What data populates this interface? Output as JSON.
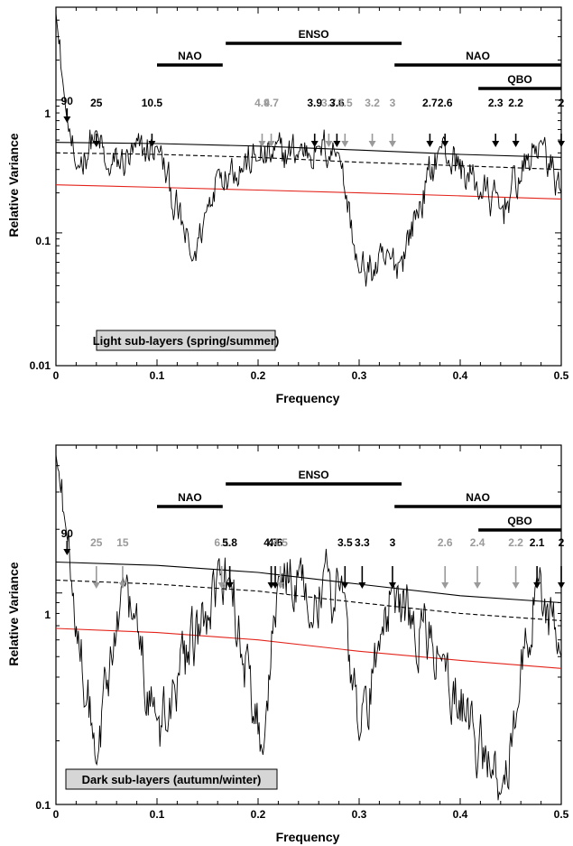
{
  "colors": {
    "black": "#000000",
    "gray": "#9a9a9a",
    "red": "#e3241b",
    "box_fill": "#d6d6d6"
  },
  "panels": [
    {
      "ylabel": "Relative Variance",
      "xlabel": "Frequency",
      "xticks": [
        "0",
        "0.1",
        "0.2",
        "0.3",
        "0.4",
        "0.5"
      ],
      "yticks": [
        "0.01",
        "0.1",
        "1"
      ],
      "caption": "Light sub-layers (spring/summer)",
      "bands": [
        {
          "label": "NAO",
          "x": [
            0.1,
            0.165
          ]
        },
        {
          "label": "ENSO",
          "x": [
            0.168,
            0.342
          ]
        },
        {
          "label": "NAO",
          "x": [
            0.335,
            0.5
          ]
        },
        {
          "label": "QBO",
          "x": [
            0.418,
            0.5
          ]
        }
      ],
      "peaks": [
        {
          "label": "90",
          "f": 0.011,
          "color": "black"
        },
        {
          "label": "25",
          "f": 0.04,
          "color": "black"
        },
        {
          "label": "10.5",
          "f": 0.095,
          "color": "black"
        },
        {
          "label": "4.9",
          "f": 0.204,
          "color": "gray"
        },
        {
          "label": "4.7",
          "f": 0.213,
          "color": "gray"
        },
        {
          "label": "3.9",
          "f": 0.256,
          "color": "black"
        },
        {
          "label": "3.7",
          "f": 0.27,
          "color": "gray"
        },
        {
          "label": "3.6",
          "f": 0.278,
          "color": "black"
        },
        {
          "label": "3.5",
          "f": 0.286,
          "color": "gray"
        },
        {
          "label": "3.2",
          "f": 0.313,
          "color": "gray"
        },
        {
          "label": "3",
          "f": 0.333,
          "color": "gray"
        },
        {
          "label": "2.7",
          "f": 0.37,
          "color": "black"
        },
        {
          "label": "2.6",
          "f": 0.385,
          "color": "black"
        },
        {
          "label": "2.3",
          "f": 0.435,
          "color": "black"
        },
        {
          "label": "2.2",
          "f": 0.455,
          "color": "black"
        },
        {
          "label": "2",
          "f": 0.5,
          "color": "black"
        }
      ]
    },
    {
      "ylabel": "Relative Variance",
      "xlabel": "Frequency",
      "xticks": [
        "0",
        "0.1",
        "0.2",
        "0.3",
        "0.4",
        "0.5"
      ],
      "yticks": [
        "0.1",
        "1"
      ],
      "caption": "Dark sub-layers (autumn/winter)",
      "bands": [
        {
          "label": "NAO",
          "x": [
            0.1,
            0.165
          ]
        },
        {
          "label": "ENSO",
          "x": [
            0.168,
            0.342
          ]
        },
        {
          "label": "NAO",
          "x": [
            0.335,
            0.5
          ]
        },
        {
          "label": "QBO",
          "x": [
            0.418,
            0.5
          ]
        }
      ],
      "peaks": [
        {
          "label": "90",
          "f": 0.011,
          "color": "black"
        },
        {
          "label": "25",
          "f": 0.04,
          "color": "gray"
        },
        {
          "label": "15",
          "f": 0.066,
          "color": "gray"
        },
        {
          "label": "6.1",
          "f": 0.164,
          "color": "gray"
        },
        {
          "label": "5.8",
          "f": 0.172,
          "color": "black"
        },
        {
          "label": "4.7",
          "f": 0.213,
          "color": "black"
        },
        {
          "label": "4.6",
          "f": 0.217,
          "color": "black"
        },
        {
          "label": "4.5",
          "f": 0.222,
          "color": "gray"
        },
        {
          "label": "3.5",
          "f": 0.286,
          "color": "black"
        },
        {
          "label": "3.3",
          "f": 0.303,
          "color": "black"
        },
        {
          "label": "3",
          "f": 0.333,
          "color": "black"
        },
        {
          "label": "2.6",
          "f": 0.385,
          "color": "gray"
        },
        {
          "label": "2.4",
          "f": 0.417,
          "color": "gray"
        },
        {
          "label": "2.2",
          "f": 0.455,
          "color": "gray"
        },
        {
          "label": "2.1",
          "f": 0.476,
          "color": "black"
        },
        {
          "label": "2",
          "f": 0.5,
          "color": "black"
        }
      ]
    }
  ],
  "chart_data": [
    {
      "type": "line",
      "title": "",
      "xlabel": "Frequency",
      "ylabel": "Relative Variance",
      "xlim": [
        0,
        0.5
      ],
      "ylim": [
        0.01,
        5
      ],
      "yscale": "log",
      "grid": false,
      "series": [
        {
          "name": "",
          "style": "black noisy spectrum",
          "x": [
            0,
            0.01,
            0.02,
            0.04,
            0.05,
            0.1,
            0.135,
            0.16,
            0.2,
            0.26,
            0.28,
            0.3,
            0.34,
            0.38,
            0.44,
            0.48,
            0.5
          ],
          "y": [
            4.5,
            0.8,
            0.3,
            0.6,
            0.3,
            0.45,
            0.06,
            0.3,
            0.35,
            0.45,
            0.4,
            0.05,
            0.06,
            0.45,
            0.15,
            0.5,
            0.2
          ]
        },
        {
          "name": "",
          "style": "solid black smooth",
          "x": [
            0,
            0.1,
            0.2,
            0.3,
            0.4,
            0.5
          ],
          "y": [
            0.48,
            0.47,
            0.45,
            0.42,
            0.39,
            0.37
          ]
        },
        {
          "name": "",
          "style": "dashed black smooth",
          "x": [
            0,
            0.1,
            0.2,
            0.3,
            0.4,
            0.5
          ],
          "y": [
            0.4,
            0.39,
            0.37,
            0.34,
            0.32,
            0.3
          ]
        },
        {
          "name": "",
          "style": "red smooth",
          "x": [
            0,
            0.1,
            0.2,
            0.3,
            0.4,
            0.5
          ],
          "y": [
            0.23,
            0.22,
            0.21,
            0.2,
            0.19,
            0.18
          ]
        }
      ]
    },
    {
      "type": "line",
      "title": "",
      "xlabel": "Frequency",
      "ylabel": "Relative Variance",
      "xlim": [
        0,
        0.5
      ],
      "ylim": [
        0.1,
        5
      ],
      "yscale": "log",
      "grid": false,
      "series": [
        {
          "name": "",
          "style": "black noisy spectrum",
          "x": [
            0,
            0.01,
            0.04,
            0.066,
            0.1,
            0.172,
            0.205,
            0.22,
            0.286,
            0.3,
            0.333,
            0.38,
            0.44,
            0.476,
            0.5
          ],
          "y": [
            4.5,
            2.0,
            0.15,
            1.2,
            0.25,
            1.2,
            0.17,
            1.2,
            1.0,
            0.2,
            1.1,
            0.5,
            0.11,
            1.2,
            0.5
          ]
        },
        {
          "name": "",
          "style": "solid black smooth",
          "x": [
            0,
            0.1,
            0.2,
            0.3,
            0.4,
            0.5
          ],
          "y": [
            1.4,
            1.35,
            1.25,
            1.1,
            0.97,
            0.9
          ]
        },
        {
          "name": "",
          "style": "dashed black smooth",
          "x": [
            0,
            0.1,
            0.2,
            0.3,
            0.4,
            0.5
          ],
          "y": [
            1.15,
            1.1,
            1.02,
            0.9,
            0.8,
            0.74
          ]
        },
        {
          "name": "",
          "style": "red smooth",
          "x": [
            0,
            0.1,
            0.2,
            0.3,
            0.4,
            0.5
          ],
          "y": [
            0.68,
            0.65,
            0.6,
            0.53,
            0.48,
            0.44
          ]
        }
      ]
    }
  ]
}
